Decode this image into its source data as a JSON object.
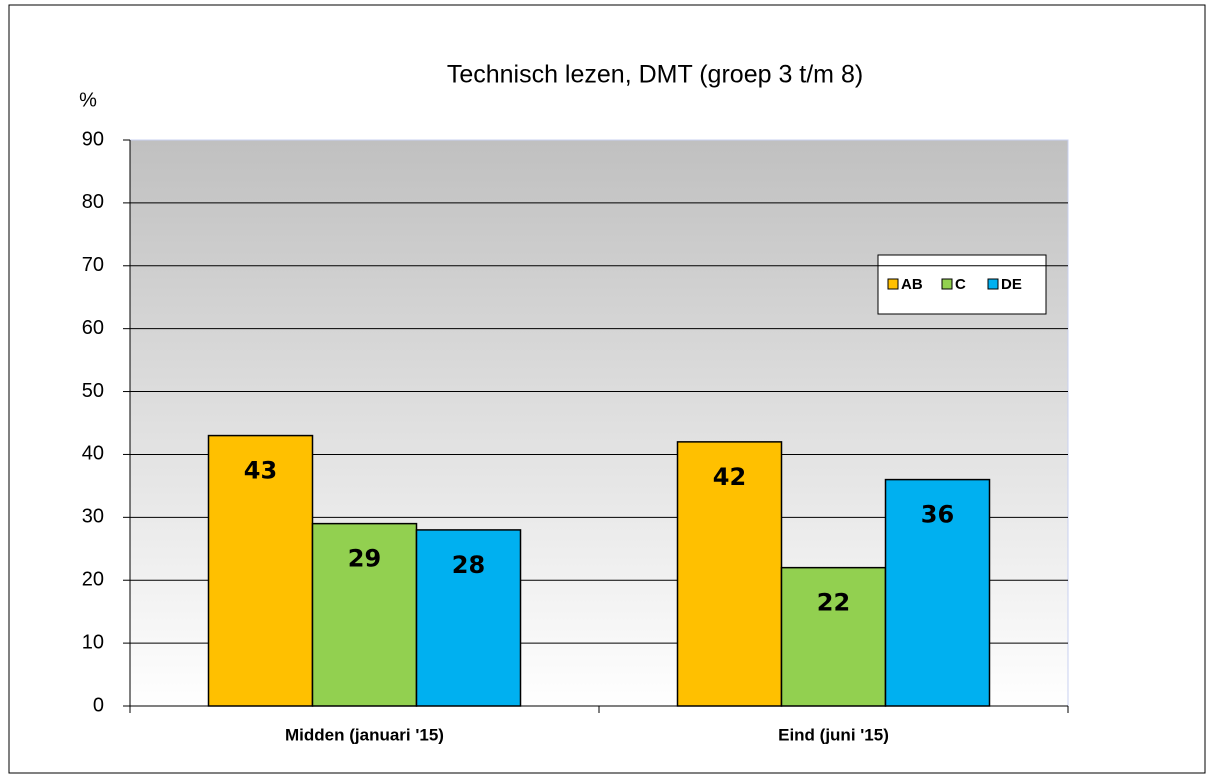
{
  "chart_data": {
    "type": "bar",
    "title": "Technisch lezen, DMT (groep 3 t/m 8)",
    "ylabel": "%",
    "categories": [
      "Midden (januari '15)",
      "Eind (juni '15)"
    ],
    "series": [
      {
        "name": "AB",
        "color": "#ffc000",
        "values": [
          43,
          42
        ]
      },
      {
        "name": "C",
        "color": "#92d050",
        "values": [
          29,
          22
        ]
      },
      {
        "name": "DE",
        "color": "#00b0f0",
        "values": [
          28,
          36
        ]
      }
    ],
    "ylim": [
      0,
      90
    ],
    "yticks": [
      0,
      10,
      20,
      30,
      40,
      50,
      60,
      70,
      80,
      90
    ],
    "grid": true,
    "legend": "right"
  }
}
